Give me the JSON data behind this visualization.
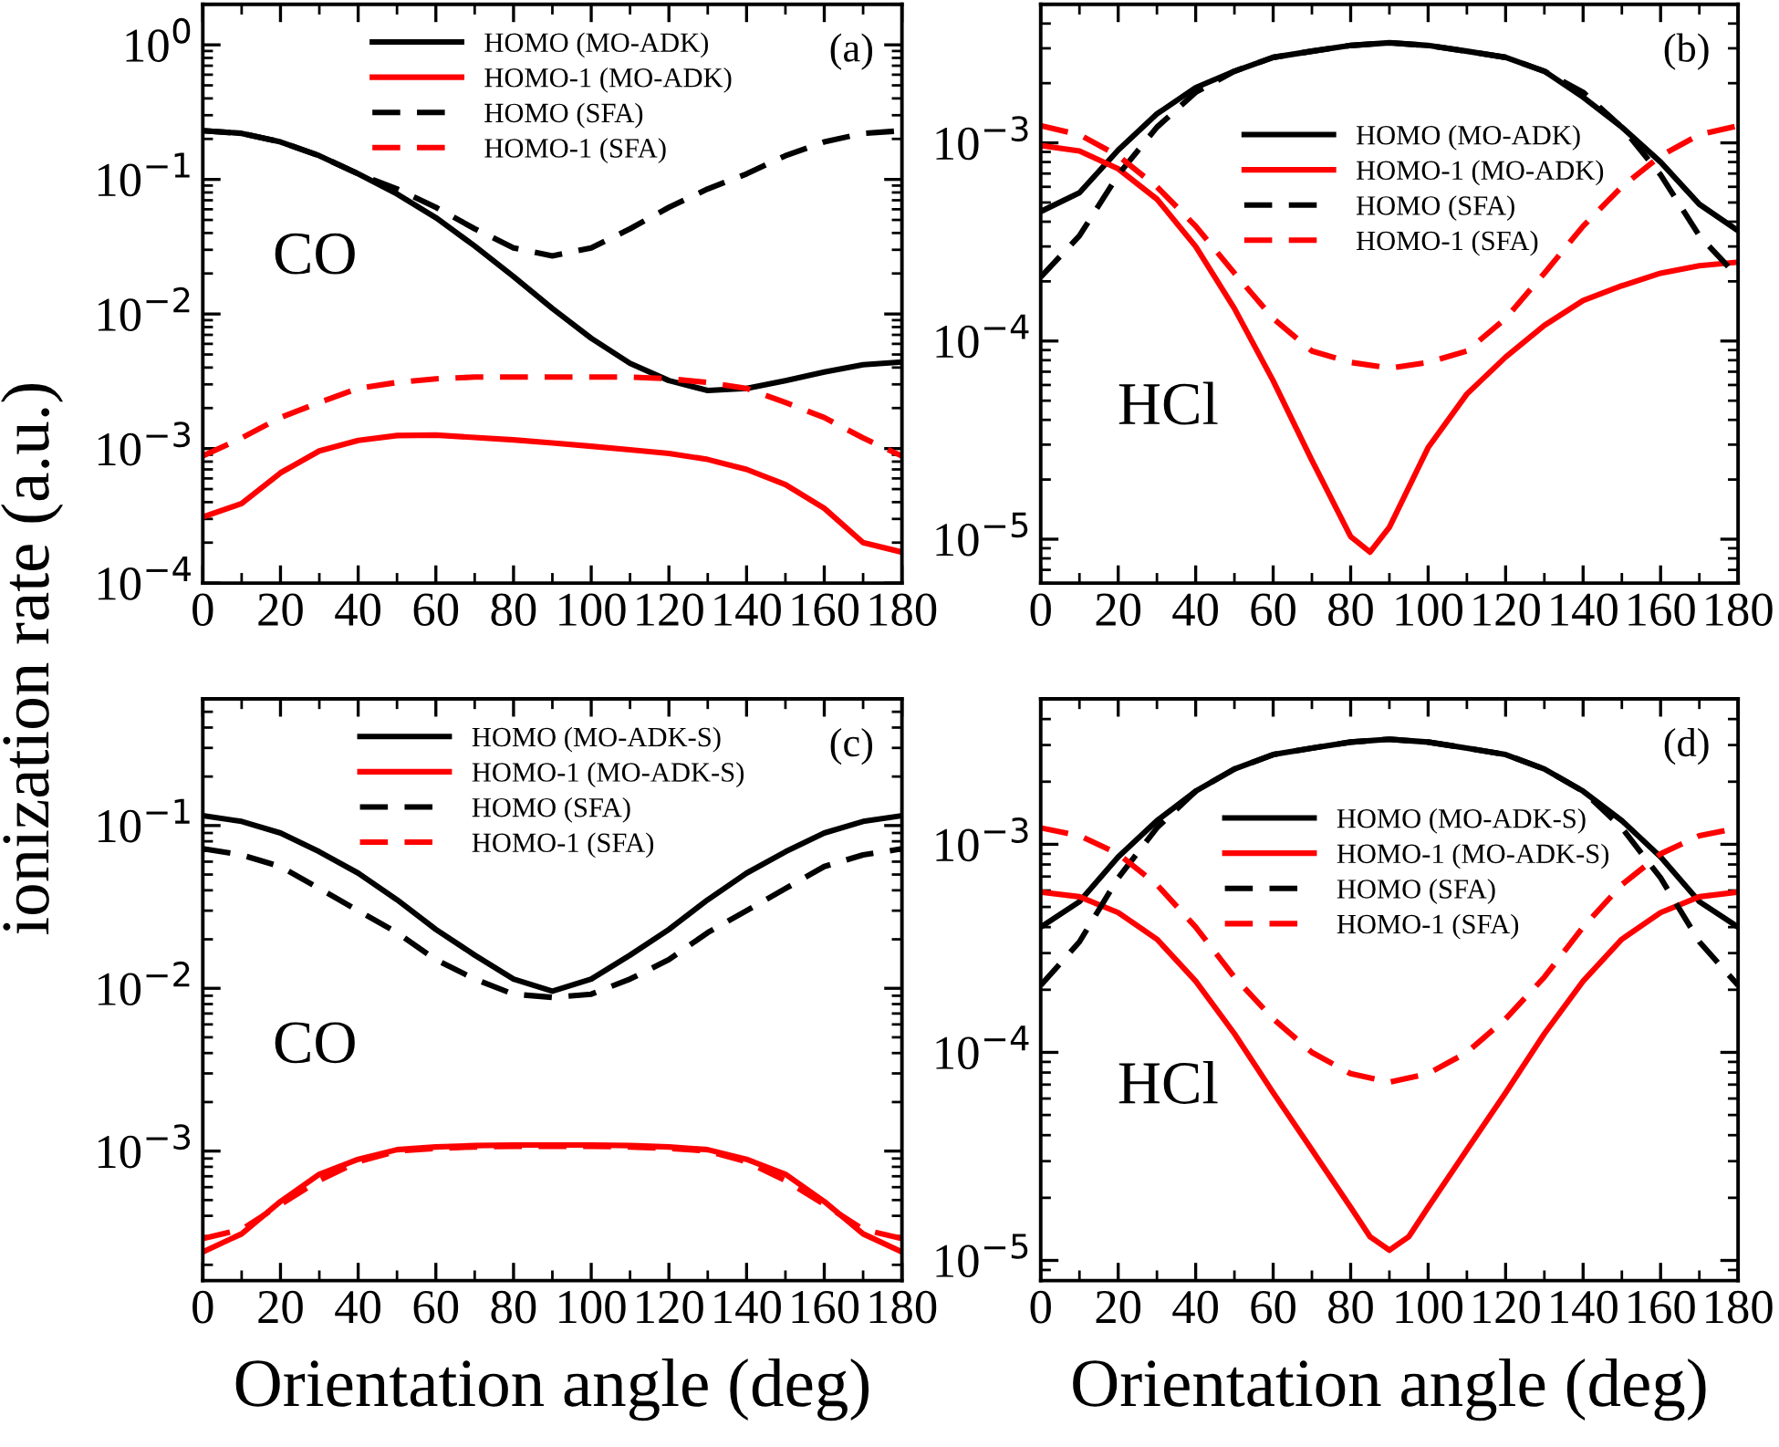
{
  "chart_data": [
    {
      "type": "line",
      "ylabel": "ionization rate (a.u.)",
      "annotations": [
        "(a)",
        "CO"
      ],
      "log": "y",
      "legend": "top",
      "grid": false,
      "x": [
        0,
        10,
        20,
        30,
        40,
        50,
        60,
        70,
        80,
        90,
        100,
        110,
        120,
        130,
        140,
        150,
        160,
        170,
        180
      ],
      "xlim": [
        0,
        180
      ],
      "xticks": [
        0,
        20,
        40,
        60,
        80,
        100,
        120,
        140,
        160,
        180
      ],
      "ylim": [
        0.0001,
        2
      ],
      "yticks": [
        {
          "value": 0.0001,
          "label": "10$^{−4}$"
        },
        {
          "value": 0.001,
          "label": "10$^{−3}$"
        },
        {
          "value": 0.01,
          "label": "10$^{−2}$"
        },
        {
          "value": 0.1,
          "label": "10$^{−1}$"
        },
        {
          "value": 1,
          "label": "10$^{0}$"
        }
      ],
      "series": [
        {
          "name": "HOMO (MO-ADK)",
          "color": "#000000",
          "line_style": "solid",
          "values": [
            0.23,
            0.22,
            0.19,
            0.15,
            0.11,
            0.078,
            0.052,
            0.032,
            0.019,
            0.011,
            0.0066,
            0.0043,
            0.0032,
            0.0027,
            0.0028,
            0.0032,
            0.0037,
            0.0042,
            0.0044
          ]
        },
        {
          "name": "HOMO-1 (MO-ADK)",
          "color": "#ff0000",
          "line_style": "solid",
          "values": [
            0.00031,
            0.00039,
            0.00066,
            0.00096,
            0.00115,
            0.00125,
            0.00126,
            0.00121,
            0.00116,
            0.0011,
            0.00104,
            0.00098,
            0.00092,
            0.00083,
            0.0007,
            0.00054,
            0.00036,
            0.0002,
            0.00017
          ]
        },
        {
          "name": "HOMO (SFA)",
          "color": "#000000",
          "line_style": "dashed",
          "values": [
            0.23,
            0.22,
            0.19,
            0.15,
            0.11,
            0.085,
            0.062,
            0.043,
            0.031,
            0.027,
            0.031,
            0.043,
            0.062,
            0.085,
            0.11,
            0.15,
            0.19,
            0.22,
            0.23
          ]
        },
        {
          "name": "HOMO-1 (SFA)",
          "color": "#ff0000",
          "line_style": "dashed",
          "values": [
            0.00088,
            0.0012,
            0.0017,
            0.0022,
            0.0028,
            0.0031,
            0.0033,
            0.0034,
            0.0034,
            0.0034,
            0.0034,
            0.0034,
            0.0033,
            0.0031,
            0.0028,
            0.0022,
            0.0017,
            0.0012,
            0.00088
          ]
        }
      ]
    },
    {
      "type": "line",
      "annotations": [
        "(b)",
        "HCl"
      ],
      "log": "y",
      "legend": "top",
      "grid": false,
      "x": [
        0,
        10,
        20,
        30,
        40,
        50,
        60,
        70,
        80,
        90,
        100,
        110,
        120,
        130,
        140,
        150,
        160,
        170,
        180
      ],
      "xlim": [
        0,
        180
      ],
      "xticks": [
        0,
        20,
        40,
        60,
        80,
        100,
        120,
        140,
        160,
        180
      ],
      "ylim": [
        6e-06,
        0.005
      ],
      "yticks": [
        {
          "value": 1e-05,
          "label": "10$^{−5}$"
        },
        {
          "value": 0.0001,
          "label": "10$^{−4}$"
        },
        {
          "value": 0.001,
          "label": "10$^{−3}$"
        }
      ],
      "series": [
        {
          "name": "HOMO (MO-ADK)",
          "color": "#000000",
          "line_style": "solid",
          "values": [
            0.00045,
            0.00056,
            0.00092,
            0.0014,
            0.0019,
            0.0023,
            0.0027,
            0.0029,
            0.0031,
            0.0032,
            0.0031,
            0.0029,
            0.0027,
            0.0023,
            0.0017,
            0.0012,
            0.0008,
            0.00049,
            0.00036
          ]
        },
        {
          "name": "HOMO-1 (MO-ADK)",
          "color": "#ff0000",
          "line_style": "solid",
          "x": [
            0,
            10,
            20,
            30,
            40,
            50,
            60,
            70,
            80,
            85,
            90,
            100,
            110,
            120,
            130,
            140,
            150,
            160,
            170,
            180
          ],
          "values": [
            0.00097,
            0.00091,
            0.00074,
            0.00052,
            0.0003,
            0.000146,
            6.3e-05,
            2.5e-05,
            1.03e-05,
            8.6e-06,
            1.15e-05,
            2.9e-05,
            5.4e-05,
            8.3e-05,
            0.00012,
            0.00016,
            0.00019,
            0.00022,
            0.00024,
            0.00025
          ]
        },
        {
          "name": "HOMO (SFA)",
          "color": "#000000",
          "line_style": "dashed",
          "values": [
            0.00021,
            0.00034,
            0.00069,
            0.0012,
            0.0018,
            0.0023,
            0.0027,
            0.0029,
            0.0031,
            0.0032,
            0.0031,
            0.0029,
            0.0027,
            0.0023,
            0.0018,
            0.0012,
            0.00069,
            0.00034,
            0.00021
          ]
        },
        {
          "name": "HOMO-1 (SFA)",
          "color": "#ff0000",
          "line_style": "dashed",
          "values": [
            0.00122,
            0.0011,
            0.00086,
            0.0006,
            0.00038,
            0.00022,
            0.00013,
            8.9e-05,
            7.8e-05,
            7.3e-05,
            7.8e-05,
            8.9e-05,
            0.00013,
            0.00022,
            0.00038,
            0.0006,
            0.00086,
            0.0011,
            0.00122
          ]
        }
      ]
    },
    {
      "type": "line",
      "xlabel": "Orientation angle (deg)",
      "annotations": [
        "(c)",
        "CO"
      ],
      "log": "y",
      "legend": "top",
      "grid": false,
      "x": [
        0,
        10,
        20,
        30,
        40,
        50,
        60,
        70,
        80,
        90,
        100,
        110,
        120,
        130,
        140,
        150,
        160,
        170,
        180
      ],
      "xlim": [
        0,
        180
      ],
      "xticks": [
        0,
        20,
        40,
        60,
        80,
        100,
        120,
        140,
        160,
        180
      ],
      "ylim": [
        0.00016,
        0.6
      ],
      "yticks": [
        {
          "value": 0.001,
          "label": "10$^{−3}$"
        },
        {
          "value": 0.01,
          "label": "10$^{−2}$"
        },
        {
          "value": 0.1,
          "label": "10$^{−1}$"
        }
      ],
      "series": [
        {
          "name": "HOMO (MO-ADK-S)",
          "color": "#000000",
          "line_style": "solid",
          "values": [
            0.115,
            0.106,
            0.09,
            0.069,
            0.051,
            0.035,
            0.023,
            0.016,
            0.0114,
            0.0096,
            0.0114,
            0.016,
            0.023,
            0.035,
            0.051,
            0.069,
            0.09,
            0.106,
            0.115
          ]
        },
        {
          "name": "HOMO-1 (MO-ADK-S)",
          "color": "#ff0000",
          "line_style": "solid",
          "values": [
            0.00024,
            0.00031,
            0.00049,
            0.00072,
            0.00089,
            0.00102,
            0.00106,
            0.00108,
            0.00109,
            0.00109,
            0.00109,
            0.00108,
            0.00106,
            0.00102,
            0.00089,
            0.00072,
            0.00049,
            0.00031,
            0.00024
          ]
        },
        {
          "name": "HOMO (SFA)",
          "color": "#000000",
          "line_style": "dashed",
          "values": [
            0.072,
            0.066,
            0.056,
            0.041,
            0.03,
            0.022,
            0.015,
            0.0114,
            0.0092,
            0.0088,
            0.0092,
            0.0114,
            0.015,
            0.022,
            0.03,
            0.041,
            0.056,
            0.066,
            0.072
          ]
        },
        {
          "name": "HOMO-1 (SFA)",
          "color": "#ff0000",
          "line_style": "dashed",
          "values": [
            0.00029,
            0.00033,
            0.00047,
            0.00066,
            0.00086,
            0.001,
            0.00104,
            0.00106,
            0.00107,
            0.00107,
            0.00107,
            0.00106,
            0.00104,
            0.001,
            0.00086,
            0.00066,
            0.00047,
            0.00033,
            0.00029
          ]
        }
      ]
    },
    {
      "type": "line",
      "xlabel": "Orientation angle (deg)",
      "annotations": [
        "(d)",
        "HCl"
      ],
      "log": "y",
      "legend": "top",
      "grid": false,
      "x": [
        0,
        10,
        20,
        30,
        40,
        50,
        60,
        70,
        80,
        90,
        100,
        110,
        120,
        130,
        140,
        150,
        160,
        170,
        180
      ],
      "xlim": [
        0,
        180
      ],
      "xticks": [
        0,
        20,
        40,
        60,
        80,
        100,
        120,
        140,
        160,
        180
      ],
      "ylim": [
        8e-06,
        0.005
      ],
      "yticks": [
        {
          "value": 1e-05,
          "label": "10$^{−5}$"
        },
        {
          "value": 0.0001,
          "label": "10$^{−4}$"
        },
        {
          "value": 0.001,
          "label": "10$^{−3}$"
        }
      ],
      "series": [
        {
          "name": "HOMO (MO-ADK-S)",
          "color": "#000000",
          "line_style": "solid",
          "values": [
            0.0004,
            0.00053,
            0.00087,
            0.0013,
            0.0018,
            0.0023,
            0.0027,
            0.0029,
            0.0031,
            0.0032,
            0.0031,
            0.0029,
            0.0027,
            0.0023,
            0.0018,
            0.0013,
            0.00087,
            0.00053,
            0.0004
          ]
        },
        {
          "name": "HOMO-1 (MO-ADK-S)",
          "color": "#ff0000",
          "line_style": "solid",
          "x": [
            0,
            10,
            20,
            30,
            40,
            50,
            60,
            70,
            80,
            85,
            90,
            95,
            100,
            110,
            120,
            130,
            140,
            150,
            160,
            170,
            180
          ],
          "values": [
            0.00059,
            0.00056,
            0.00047,
            0.00035,
            0.00022,
            0.000123,
            6.4e-05,
            3.4e-05,
            1.8e-05,
            1.3e-05,
            1.12e-05,
            1.3e-05,
            1.8e-05,
            3.4e-05,
            6.4e-05,
            0.000123,
            0.00022,
            0.00035,
            0.00047,
            0.00056,
            0.00059
          ]
        },
        {
          "name": "HOMO (SFA)",
          "color": "#000000",
          "line_style": "dashed",
          "values": [
            0.00021,
            0.00034,
            0.00069,
            0.0012,
            0.0018,
            0.0023,
            0.0027,
            0.0029,
            0.0031,
            0.0032,
            0.0031,
            0.0029,
            0.0027,
            0.0023,
            0.0018,
            0.0012,
            0.00069,
            0.00034,
            0.00021
          ]
        },
        {
          "name": "HOMO-1 (SFA)",
          "color": "#ff0000",
          "line_style": "dashed",
          "values": [
            0.0012,
            0.0011,
            0.0009,
            0.00064,
            0.0004,
            0.00023,
            0.000145,
            0.0001,
            7.9e-05,
            7.2e-05,
            7.9e-05,
            0.0001,
            0.000145,
            0.00023,
            0.0004,
            0.00064,
            0.0009,
            0.0011,
            0.0012
          ]
        }
      ]
    }
  ]
}
